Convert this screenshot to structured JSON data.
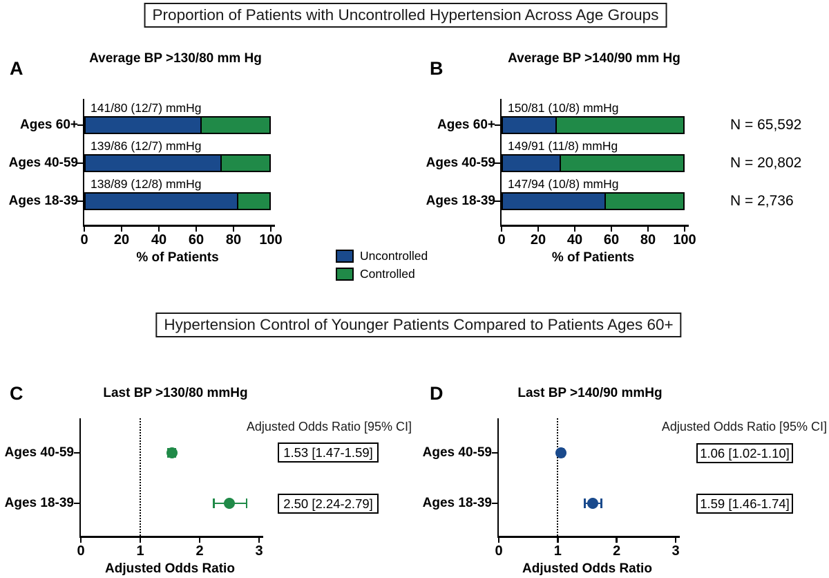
{
  "titles": {
    "top": "Proportion of Patients with Uncontrolled Hypertension Across Age Groups",
    "bottom": "Hypertension Control of Younger Patients Compared to Patients Ages 60+"
  },
  "colors": {
    "blue": "#1a4a8c",
    "green": "#208a48"
  },
  "legend": {
    "items": [
      {
        "label": "Uncontrolled",
        "color_key": "blue"
      },
      {
        "label": "Controlled",
        "color_key": "green"
      }
    ]
  },
  "chart_data": [
    {
      "id": "A",
      "panel_label": "A",
      "type": "bar",
      "orientation": "horizontal",
      "stacked": true,
      "title": "Average BP >130/80 mm Hg",
      "categories": [
        "Ages 60+",
        "Ages 40-59",
        "Ages 18-39"
      ],
      "bar_annotations": [
        "141/80 (12/7) mmHg",
        "139/86 (12/7) mmHg",
        "138/89 (12/8) mmHg"
      ],
      "series": [
        {
          "name": "Uncontrolled",
          "color_key": "blue",
          "values": [
            63,
            74,
            83
          ]
        },
        {
          "name": "Controlled",
          "color_key": "green",
          "values": [
            37,
            26,
            17
          ]
        }
      ],
      "xlabel": "% of Patients",
      "xlim": [
        0,
        100
      ],
      "xticks": [
        "0",
        "20",
        "40",
        "60",
        "80",
        "100"
      ]
    },
    {
      "id": "B",
      "panel_label": "B",
      "type": "bar",
      "orientation": "horizontal",
      "stacked": true,
      "title": "Average BP >140/90 mm Hg",
      "categories": [
        "Ages 60+",
        "Ages 40-59",
        "Ages 18-39"
      ],
      "bar_annotations": [
        "150/81 (10/8) mmHg",
        "149/91 (11/8) mmHg",
        "147/94 (10/8) mmHg"
      ],
      "series": [
        {
          "name": "Uncontrolled",
          "color_key": "blue",
          "values": [
            30,
            32,
            57
          ]
        },
        {
          "name": "Controlled",
          "color_key": "green",
          "values": [
            70,
            68,
            43
          ]
        }
      ],
      "n_labels": [
        "N = 65,592",
        "N = 20,802",
        "N = 2,736"
      ],
      "xlabel": "% of Patients",
      "xlim": [
        0,
        100
      ],
      "xticks": [
        "0",
        "20",
        "40",
        "60",
        "80",
        "100"
      ]
    },
    {
      "id": "C",
      "panel_label": "C",
      "type": "scatter",
      "subtype": "forest",
      "title": "Last BP >130/80 mmHg",
      "header": "Adjusted Odds Ratio [95% CI]",
      "categories": [
        "Ages 40-59",
        "Ages 18-39"
      ],
      "color_key": "green",
      "points": [
        {
          "or": 1.53,
          "ci_low": 1.47,
          "ci_high": 1.59,
          "label": "1.53 [1.47-1.59]"
        },
        {
          "or": 2.5,
          "ci_low": 2.24,
          "ci_high": 2.79,
          "label": "2.50 [2.24-2.79]"
        }
      ],
      "reference_line": 1,
      "xlabel": "Adjusted Odds Ratio",
      "xlim": [
        0,
        3
      ],
      "xticks": [
        "0",
        "1",
        "2",
        "3"
      ]
    },
    {
      "id": "D",
      "panel_label": "D",
      "type": "scatter",
      "subtype": "forest",
      "title": "Last BP >140/90 mmHg",
      "header": "Adjusted Odds Ratio [95% CI]",
      "categories": [
        "Ages 40-59",
        "Ages 18-39"
      ],
      "color_key": "blue",
      "points": [
        {
          "or": 1.06,
          "ci_low": 1.02,
          "ci_high": 1.1,
          "label": "1.06 [1.02-1.10]"
        },
        {
          "or": 1.59,
          "ci_low": 1.46,
          "ci_high": 1.74,
          "label": "1.59 [1.46-1.74]"
        }
      ],
      "reference_line": 1,
      "xlabel": "Adjusted Odds Ratio",
      "xlim": [
        0,
        3
      ],
      "xticks": [
        "0",
        "1",
        "2",
        "3"
      ]
    }
  ]
}
